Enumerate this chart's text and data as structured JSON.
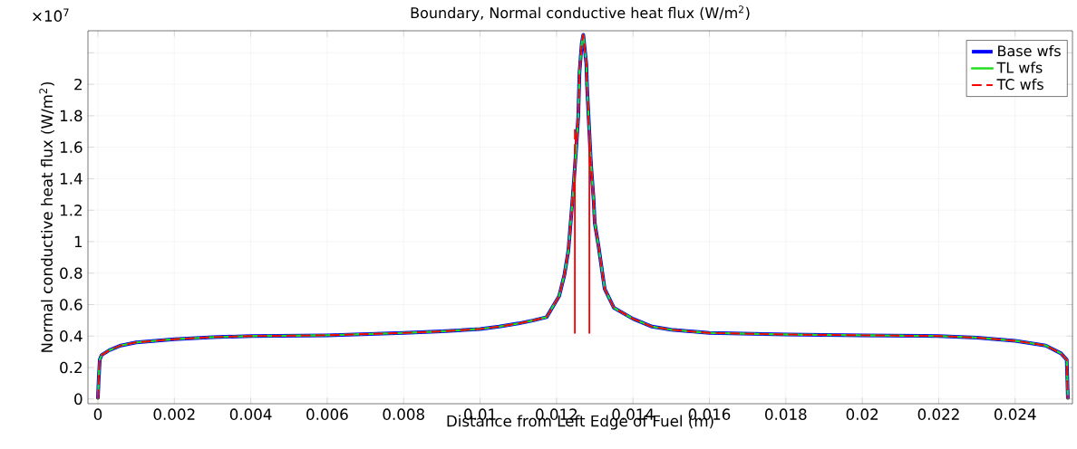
{
  "chart_data": {
    "type": "line",
    "title": "Boundary, Normal conductive heat flux (W/m$^{2}$)",
    "xlabel": "Distance from Left Edge of Fuel (m)",
    "ylabel": "Normal conductive heat flux (W/m$^{2}$)",
    "annotations": [
      "×10$^{7}$"
    ],
    "xlim": [
      -0.00026,
      0.0255
    ],
    "ylim": [
      -0.03,
      2.34
    ],
    "xticks": [
      0,
      0.002,
      0.004,
      0.006,
      0.008,
      0.01,
      0.012,
      0.014,
      0.016,
      0.018,
      0.02,
      0.022,
      0.024
    ],
    "yticks": [
      0,
      0.2,
      0.4,
      0.6,
      0.8,
      1,
      1.2,
      1.4,
      1.6,
      1.8,
      2,
      {
        "value": 2.2,
        "label": null
      }
    ],
    "grid": true,
    "legend": "top right",
    "series": [
      {
        "name": "Base wfs",
        "color": "#0000ff",
        "line_style": "solid",
        "x": [
          0,
          2e-05,
          5e-05,
          0.0001,
          0.0003,
          0.0006,
          0.001,
          0.002,
          0.003,
          0.004,
          0.006,
          0.008,
          0.009,
          0.01,
          0.0105,
          0.011,
          0.0114,
          0.01174,
          0.01207,
          0.01221,
          0.01231,
          0.0124,
          0.01245,
          0.01252,
          0.01257,
          0.0126,
          0.01266,
          0.0127,
          0.01278,
          0.0128,
          0.0129,
          0.01297,
          0.013,
          0.0131,
          0.01326,
          0.0135,
          0.014,
          0.0143,
          0.0145,
          0.015,
          0.016,
          0.018,
          0.02,
          0.022,
          0.023,
          0.024,
          0.0248,
          0.0252,
          0.02535,
          0.02538
        ],
        "values": [
          0,
          0.12,
          0.25,
          0.28,
          0.31,
          0.34,
          0.36,
          0.38,
          0.393,
          0.4,
          0.405,
          0.42,
          0.43,
          0.445,
          0.46,
          0.48,
          0.5,
          0.52,
          0.655,
          0.793,
          0.943,
          1.21,
          1.37,
          1.61,
          1.8,
          2.07,
          2.26,
          2.314,
          2.13,
          1.98,
          1.5,
          1.27,
          1.12,
          0.97,
          0.7,
          0.58,
          0.51,
          0.48,
          0.46,
          0.44,
          0.42,
          0.41,
          0.405,
          0.4,
          0.39,
          0.37,
          0.34,
          0.29,
          0.25,
          0
        ]
      },
      {
        "name": "TL wfs",
        "color": "#22dd22",
        "line_style": "dotted",
        "x": [
          0,
          2e-05,
          5e-05,
          0.0001,
          0.0003,
          0.0006,
          0.001,
          0.002,
          0.003,
          0.004,
          0.006,
          0.008,
          0.009,
          0.01,
          0.0105,
          0.011,
          0.0114,
          0.01174,
          0.01207,
          0.01221,
          0.01231,
          0.0124,
          0.01245,
          0.01252,
          0.01257,
          0.0126,
          0.01266,
          0.0127,
          0.01278,
          0.0128,
          0.0129,
          0.01297,
          0.013,
          0.0131,
          0.01326,
          0.0135,
          0.014,
          0.0143,
          0.0145,
          0.015,
          0.016,
          0.018,
          0.02,
          0.022,
          0.023,
          0.024,
          0.0248,
          0.0252,
          0.02535,
          0.02538
        ],
        "values": [
          0,
          0.12,
          0.25,
          0.28,
          0.31,
          0.34,
          0.36,
          0.38,
          0.393,
          0.4,
          0.405,
          0.42,
          0.43,
          0.445,
          0.46,
          0.48,
          0.5,
          0.52,
          0.655,
          0.793,
          0.943,
          1.21,
          1.37,
          1.61,
          1.8,
          2.07,
          2.26,
          2.314,
          2.13,
          1.98,
          1.5,
          1.27,
          1.12,
          0.97,
          0.7,
          0.58,
          0.51,
          0.48,
          0.46,
          0.44,
          0.42,
          0.41,
          0.405,
          0.4,
          0.39,
          0.37,
          0.34,
          0.29,
          0.25,
          0
        ]
      },
      {
        "name": "TC wfs",
        "color": "#ff0000",
        "line_style": "dashed",
        "x": [
          0,
          2e-05,
          5e-05,
          0.0001,
          0.0003,
          0.0006,
          0.001,
          0.002,
          0.003,
          0.004,
          0.006,
          0.008,
          0.009,
          0.01,
          0.0105,
          0.011,
          0.0114,
          0.01174,
          0.01207,
          0.01221,
          0.01231,
          0.0124,
          0.01245,
          0.01248,
          0.01248,
          0.01248,
          0.01252,
          0.01257,
          0.0126,
          0.01266,
          0.0127,
          0.01278,
          0.0128,
          0.01286,
          0.01286,
          0.01286,
          0.0129,
          0.01297,
          0.013,
          0.0131,
          0.01326,
          0.0135,
          0.014,
          0.0143,
          0.0145,
          0.015,
          0.016,
          0.018,
          0.02,
          0.022,
          0.023,
          0.024,
          0.0248,
          0.0252,
          0.02535,
          0.02538
        ],
        "values": [
          0,
          0.12,
          0.25,
          0.28,
          0.31,
          0.34,
          0.36,
          0.38,
          0.393,
          0.4,
          0.405,
          0.42,
          0.43,
          0.445,
          0.46,
          0.48,
          0.5,
          0.52,
          0.655,
          0.793,
          0.943,
          1.21,
          1.37,
          1.45,
          0.42,
          1.71,
          1.61,
          1.8,
          2.07,
          2.26,
          2.314,
          2.13,
          1.98,
          1.67,
          0.42,
          1.67,
          1.5,
          1.27,
          1.12,
          0.97,
          0.7,
          0.58,
          0.51,
          0.48,
          0.46,
          0.44,
          0.42,
          0.41,
          0.405,
          0.4,
          0.39,
          0.37,
          0.34,
          0.29,
          0.25,
          0
        ]
      }
    ]
  }
}
